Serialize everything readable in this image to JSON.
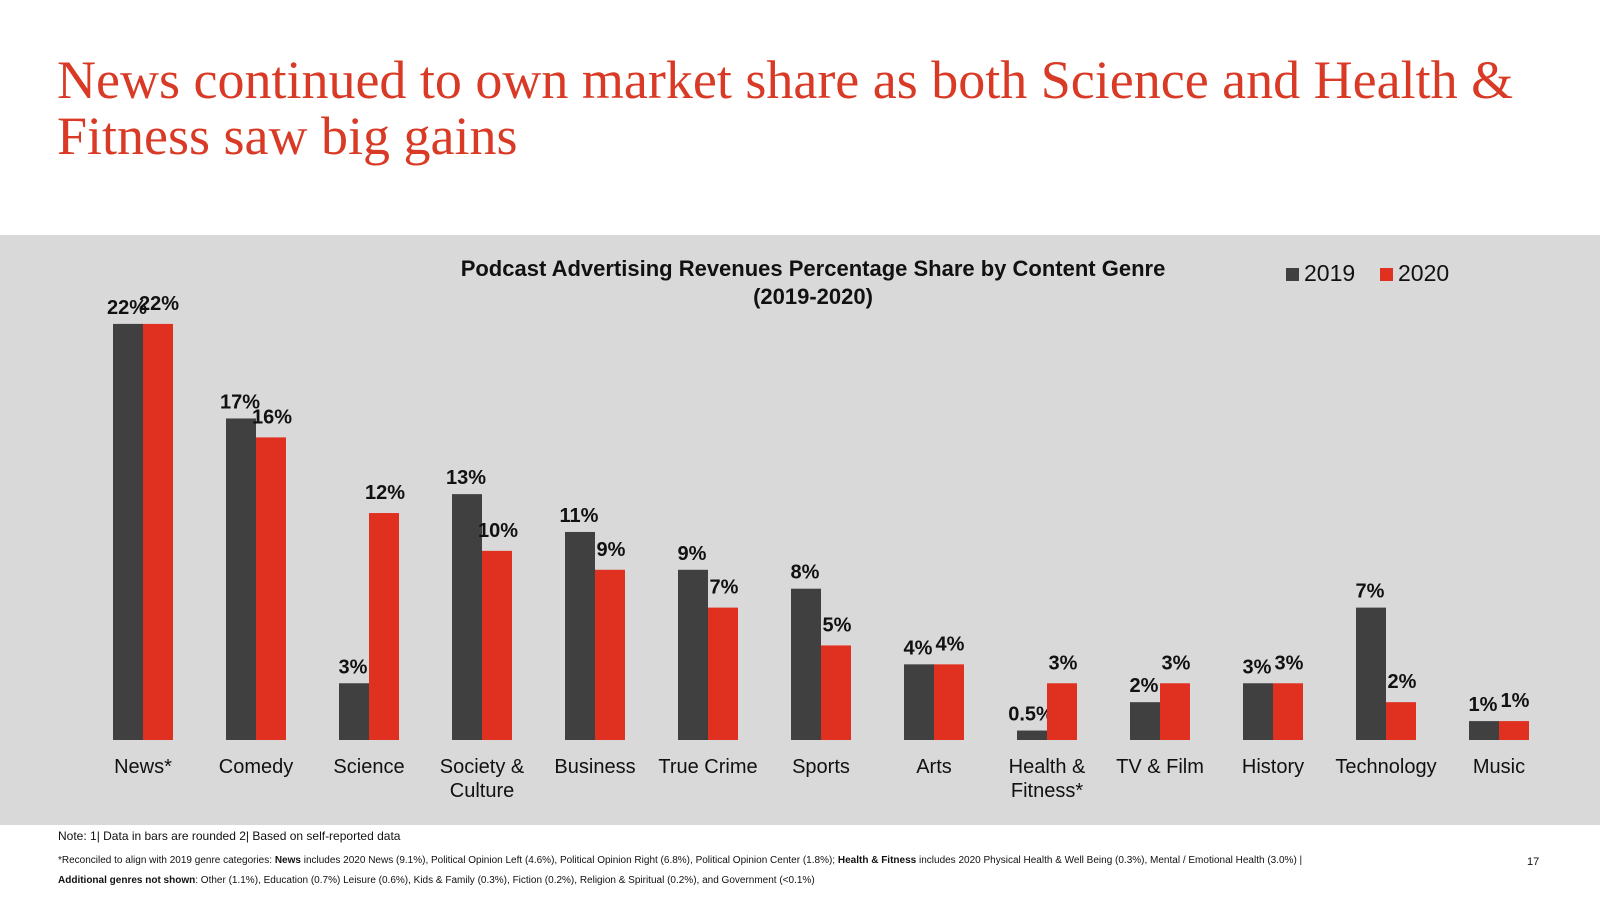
{
  "slide": {
    "title": "News continued to own market share as both Science and Health & Fitness saw big gains",
    "page_number": "17"
  },
  "colors": {
    "title": "#d93a26",
    "series_2019": "#404040",
    "series_2020": "#e03020",
    "panel": "#d9d9d9"
  },
  "chart_data": {
    "type": "bar",
    "title": "Podcast Advertising Revenues Percentage Share by Content Genre",
    "subtitle": "(2019-2020)",
    "xlabel": "",
    "ylabel": "",
    "ylim": [
      0,
      23
    ],
    "grid": false,
    "legend_position": "top-right",
    "categories": [
      "News*",
      "Comedy",
      "Science",
      "Society & Culture",
      "Business",
      "True Crime",
      "Sports",
      "Arts",
      "Health & Fitness*",
      "TV & Film",
      "History",
      "Technology",
      "Music"
    ],
    "series": [
      {
        "name": "2019",
        "color": "#404040",
        "values": [
          22,
          17,
          3,
          13,
          11,
          9,
          8,
          4,
          0.5,
          2,
          3,
          7,
          1
        ],
        "labels": [
          "22%",
          "17%",
          "3%",
          "13%",
          "11%",
          "9%",
          "8%",
          "4%",
          "0.5%",
          "2%",
          "3%",
          "7%",
          "1%"
        ]
      },
      {
        "name": "2020",
        "color": "#e03020",
        "values": [
          22,
          16,
          12,
          10,
          9,
          7,
          5,
          4,
          3,
          3,
          3,
          2,
          1
        ],
        "labels": [
          "22%",
          "16%",
          "12%",
          "10%",
          "9%",
          "7%",
          "5%",
          "4%",
          "3%",
          "3%",
          "3%",
          "2%",
          "1%"
        ]
      }
    ]
  },
  "footer": {
    "note": "Note: 1| Data in bars are rounded 2| Based on self-reported data",
    "reconciled_prefix": "*Reconciled to align with 2019 genre categories: ",
    "news_label": "News",
    "news_text": " includes 2020 News (9.1%), Political Opinion Left (4.6%), Political Opinion Right (6.8%), Political Opinion Center (1.8%); ",
    "health_label": "Health & Fitness",
    "health_text": " includes 2020 Physical Health & Well Being (0.3%), Mental / Emotional Health (3.0%)  |",
    "additional_label": "Additional genres not shown",
    "additional_text": ": Other (1.1%), Education (0.7%) Leisure (0.6%), Kids & Family (0.3%), Fiction (0.2%), Religion & Spiritual (0.2%), and Government (<0.1%)"
  }
}
